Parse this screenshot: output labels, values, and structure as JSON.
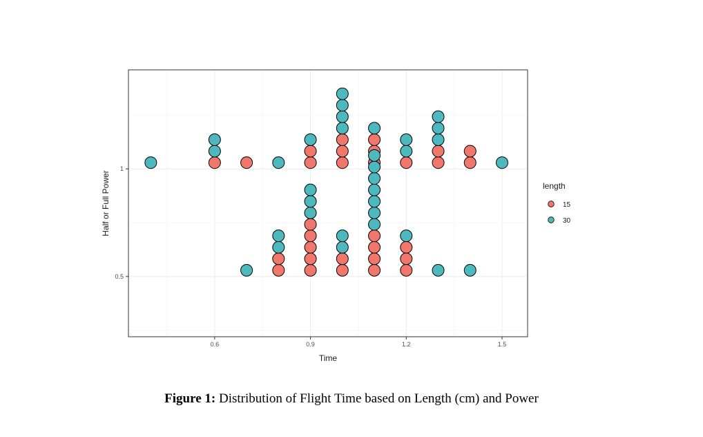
{
  "caption": {
    "label": "Figure 1:",
    "text": " Distribution of Flight Time based on Length (cm) and Power"
  },
  "chart_data": {
    "type": "dotplot",
    "title": "",
    "xlabel": "Time",
    "ylabel": "Half or Full Power",
    "xlim": [
      0.33,
      1.58
    ],
    "ylim": [
      0.22,
      1.46
    ],
    "x_ticks": [
      0.6,
      0.9,
      1.2,
      1.5
    ],
    "x_tick_labels": [
      "0.6",
      "0.9",
      "1.2",
      "1.5"
    ],
    "y_ticks": [
      0.5,
      1.0
    ],
    "y_tick_labels": [
      "0.5",
      "1"
    ],
    "grid": true,
    "legend": {
      "title": "length",
      "position": "right"
    },
    "series": [
      {
        "name": "15",
        "color": "#F8766D"
      },
      {
        "name": "30",
        "color": "#00BFC4"
      }
    ],
    "colors": {
      "15": "#F1776C",
      "30": "#4DB8BE"
    },
    "stacks": [
      {
        "x": 0.4,
        "y": 1.0,
        "dots": [
          "30"
        ]
      },
      {
        "x": 0.6,
        "y": 1.0,
        "dots": [
          "15",
          "30",
          "30"
        ]
      },
      {
        "x": 0.7,
        "y": 1.0,
        "dots": [
          "15"
        ]
      },
      {
        "x": 0.8,
        "y": 1.0,
        "dots": [
          "30"
        ]
      },
      {
        "x": 0.9,
        "y": 1.0,
        "dots": [
          "15",
          "15",
          "30"
        ]
      },
      {
        "x": 1.0,
        "y": 1.0,
        "dots": [
          "15",
          "15",
          "15",
          "30",
          "30",
          "30",
          "30"
        ]
      },
      {
        "x": 1.1,
        "y": 1.0,
        "dots": [
          "15",
          "15",
          "15",
          "30"
        ]
      },
      {
        "x": 1.2,
        "y": 1.0,
        "dots": [
          "15",
          "30",
          "30"
        ]
      },
      {
        "x": 1.3,
        "y": 1.0,
        "dots": [
          "15",
          "15",
          "30",
          "30",
          "30"
        ]
      },
      {
        "x": 1.4,
        "y": 1.0,
        "dots": [
          "15",
          "15"
        ]
      },
      {
        "x": 1.5,
        "y": 1.0,
        "dots": [
          "30"
        ]
      },
      {
        "x": 0.7,
        "y": 0.5,
        "dots": [
          "30"
        ]
      },
      {
        "x": 0.8,
        "y": 0.5,
        "dots": [
          "15",
          "15",
          "30",
          "30"
        ]
      },
      {
        "x": 0.9,
        "y": 0.5,
        "dots": [
          "15",
          "15",
          "15",
          "15",
          "15",
          "30",
          "30",
          "30"
        ]
      },
      {
        "x": 1.0,
        "y": 0.5,
        "dots": [
          "15",
          "15",
          "30",
          "30"
        ]
      },
      {
        "x": 1.1,
        "y": 0.5,
        "dots": [
          "15",
          "15",
          "15",
          "15",
          "30",
          "30",
          "30",
          "30",
          "30",
          "30",
          "30"
        ]
      },
      {
        "x": 1.2,
        "y": 0.5,
        "dots": [
          "15",
          "15",
          "15",
          "30"
        ]
      },
      {
        "x": 1.3,
        "y": 0.5,
        "dots": [
          "30"
        ]
      },
      {
        "x": 1.4,
        "y": 0.5,
        "dots": [
          "30"
        ]
      }
    ]
  }
}
